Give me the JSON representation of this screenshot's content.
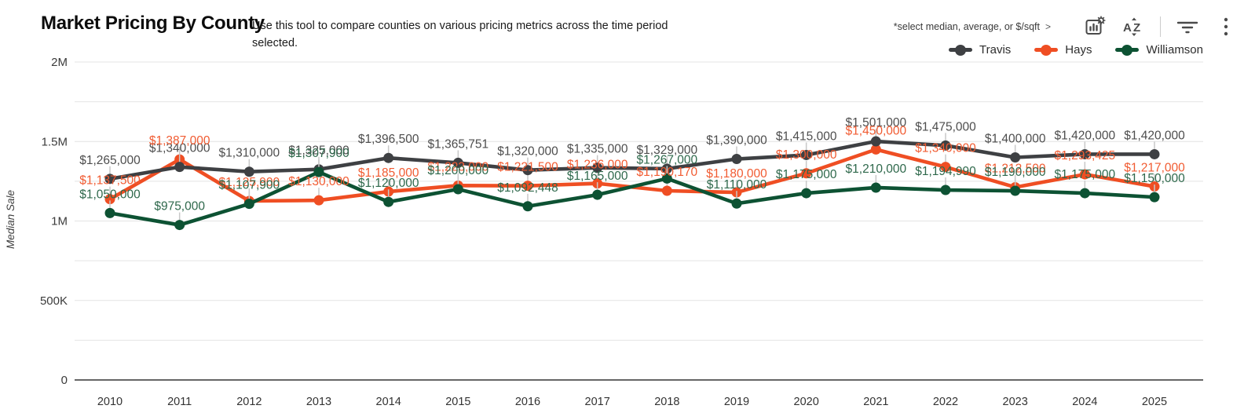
{
  "header": {
    "title_bold": "Market Pricing",
    "title_rest": " By County",
    "subtitle": "Use this tool to compare counties on various pricing metrics across the time period selected."
  },
  "toolbar": {
    "metric_hint": "*select median, average, or $/sqft",
    "metric_hint_chevron": ">",
    "icons": [
      "chart-settings",
      "sort-alphabetical",
      "filter",
      "more-options"
    ]
  },
  "chart_data": {
    "type": "line",
    "title": "Market Pricing By County",
    "xlabel": "",
    "ylabel": "Median Sale",
    "x": [
      2010,
      2011,
      2012,
      2013,
      2014,
      2015,
      2016,
      2017,
      2018,
      2019,
      2020,
      2021,
      2022,
      2023,
      2024,
      2025
    ],
    "ylim": [
      0,
      2000000
    ],
    "yticks": [
      {
        "value": 0,
        "label": "0"
      },
      {
        "value": 500000,
        "label": "500K"
      },
      {
        "value": 1000000,
        "label": "1M"
      },
      {
        "value": 1500000,
        "label": "1.5M"
      },
      {
        "value": 2000000,
        "label": "2M"
      }
    ],
    "grid": "horizontal, every 250K, light gray",
    "legend_position": "top-right",
    "value_label_format": "$#,###",
    "series": [
      {
        "name": "Travis",
        "color": "#3e4043",
        "label_color": "#4d4d4d",
        "values": [
          1265000,
          1340000,
          1310000,
          1325000,
          1396500,
          1365751,
          1320000,
          1335000,
          1329000,
          1390000,
          1415000,
          1501000,
          1475000,
          1400000,
          1420000,
          1420000
        ]
      },
      {
        "name": "Hays",
        "color": "#ef4e23",
        "label_color": "#f15b31",
        "values": [
          1137500,
          1387000,
          1125900,
          1130000,
          1185000,
          1223000,
          1221500,
          1236000,
          1190170,
          1180000,
          1300000,
          1450000,
          1340000,
          1212500,
          1293425,
          1217000
        ]
      },
      {
        "name": "Williamson",
        "color": "#0d5233",
        "label_color": "#2e684b",
        "values": [
          1050000,
          975000,
          1107900,
          1307900,
          1120000,
          1200000,
          1092448,
          1165000,
          1267000,
          1110000,
          1175000,
          1210000,
          1194990,
          1190000,
          1175000,
          1150000
        ]
      }
    ]
  },
  "colors": {
    "grid_line": "#e4e4e4",
    "zero_axis": "#333333",
    "tick_text": "#3b3b3b",
    "connector": "#c8c8c8",
    "icon": "#4a4a4a"
  }
}
